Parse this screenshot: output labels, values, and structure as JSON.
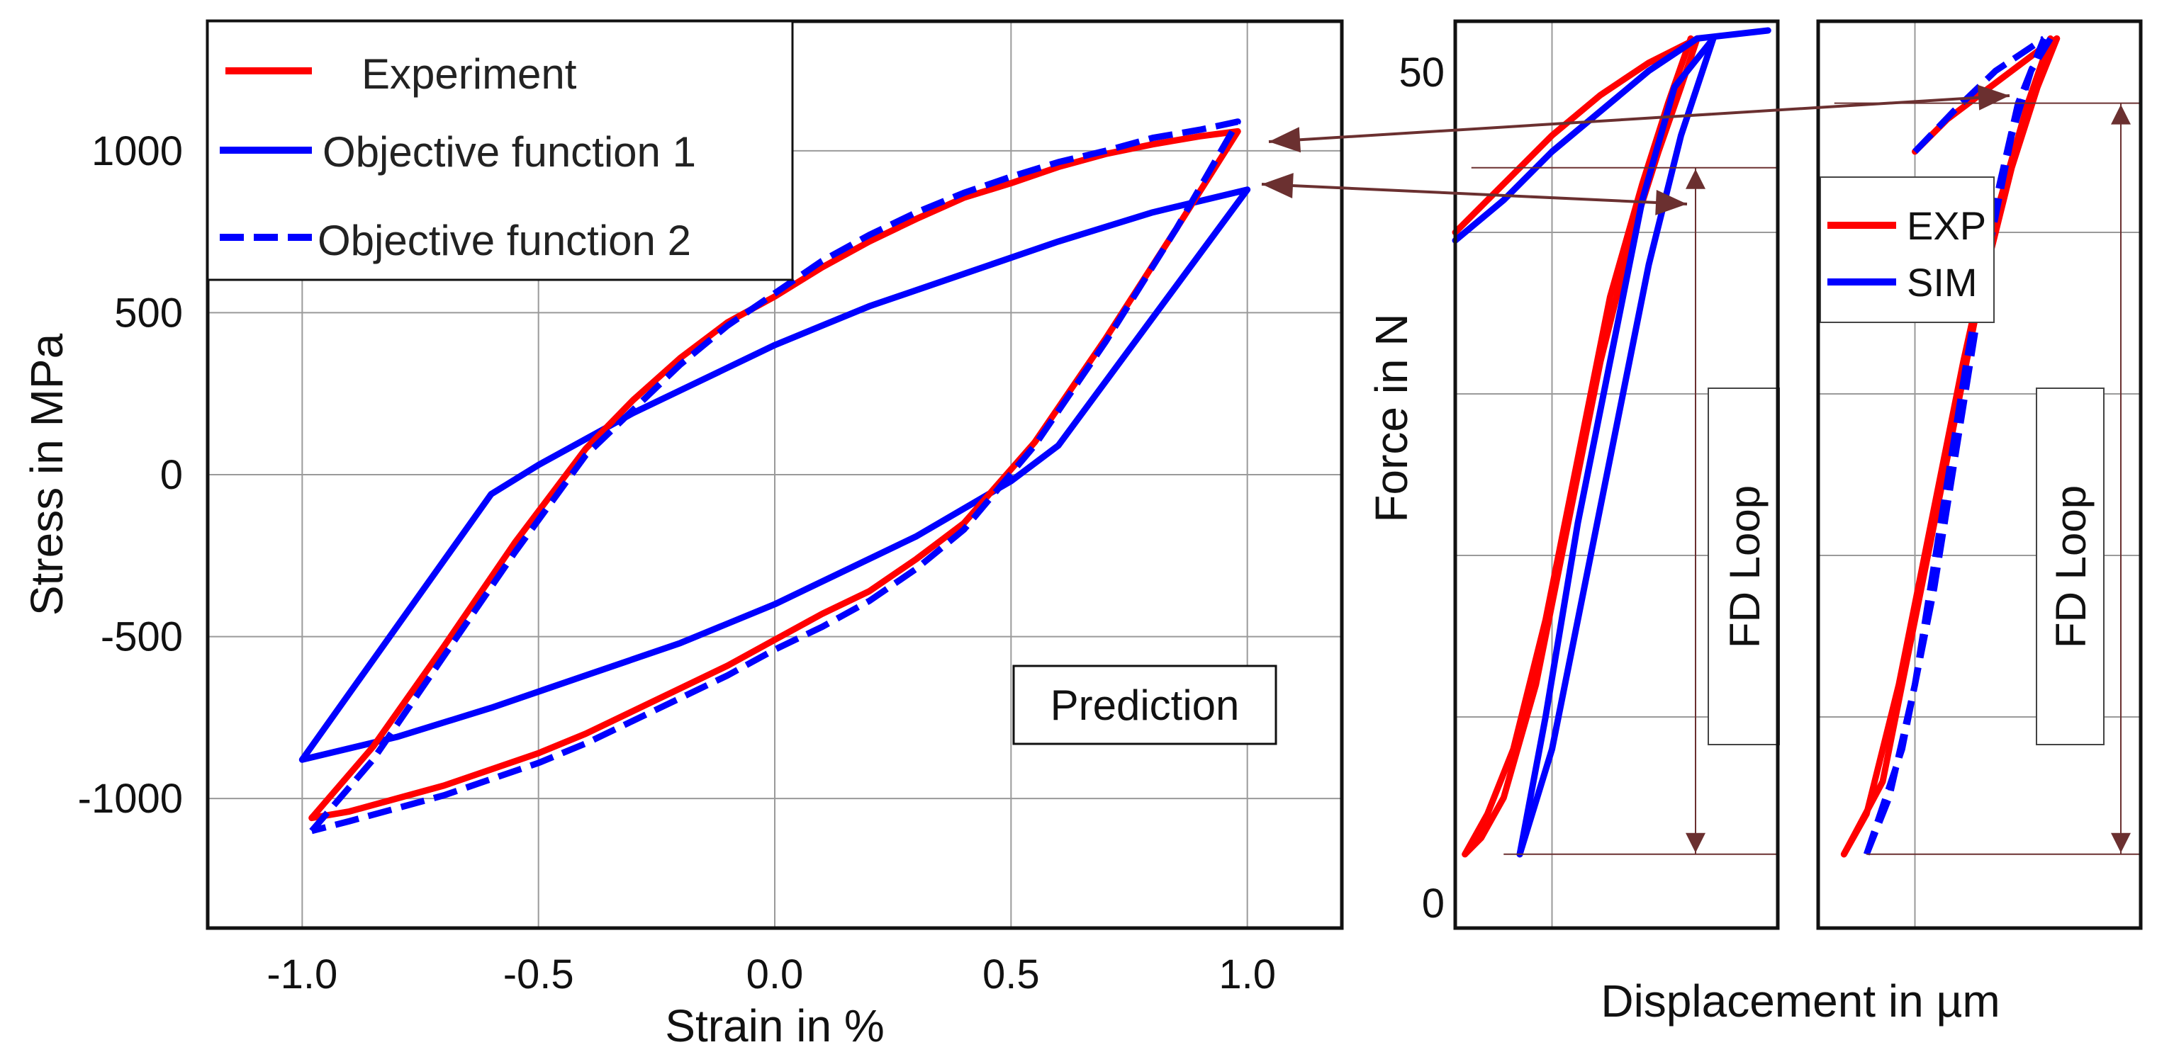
{
  "colors": {
    "experiment": "#ff0000",
    "objective": "#0000ff",
    "arrow": "#6b3030"
  },
  "chart_data": [
    {
      "type": "line",
      "title": "",
      "xlabel": "Strain in %",
      "ylabel": "Stress in MPa",
      "xlim": [
        -1.2,
        1.2
      ],
      "ylim": [
        -1400,
        1400
      ],
      "xticks": [
        -1.0,
        -0.5,
        0.0,
        0.5,
        1.0
      ],
      "xtick_labels": [
        "-1.0",
        "-0.5",
        "0.0",
        "0.5",
        "1.0"
      ],
      "yticks": [
        -1000,
        -500,
        0,
        500,
        1000
      ],
      "ytick_labels": [
        "-1000",
        "-500",
        "0",
        "500",
        "1000"
      ],
      "grid": true,
      "legend_position": "top-left",
      "annotation": "Prediction",
      "series": [
        {
          "name": "Experiment",
          "style": "solid-red",
          "upper": [
            [
              -0.98,
              -1060
            ],
            [
              -0.85,
              -840
            ],
            [
              -0.7,
              -530
            ],
            [
              -0.55,
              -210
            ],
            [
              -0.4,
              80
            ],
            [
              -0.3,
              230
            ],
            [
              -0.2,
              360
            ],
            [
              -0.1,
              470
            ],
            [
              0.0,
              550
            ],
            [
              0.1,
              640
            ],
            [
              0.2,
              720
            ],
            [
              0.3,
              790
            ],
            [
              0.4,
              855
            ],
            [
              0.5,
              900
            ],
            [
              0.6,
              950
            ],
            [
              0.7,
              990
            ],
            [
              0.8,
              1020
            ],
            [
              0.9,
              1045
            ],
            [
              0.98,
              1060
            ]
          ],
          "lower": [
            [
              0.98,
              1060
            ],
            [
              0.85,
              760
            ],
            [
              0.7,
              420
            ],
            [
              0.55,
              100
            ],
            [
              0.4,
              -150
            ],
            [
              0.3,
              -260
            ],
            [
              0.2,
              -360
            ],
            [
              0.1,
              -430
            ],
            [
              0.0,
              -510
            ],
            [
              -0.1,
              -590
            ],
            [
              -0.2,
              -660
            ],
            [
              -0.3,
              -730
            ],
            [
              -0.4,
              -800
            ],
            [
              -0.5,
              -860
            ],
            [
              -0.6,
              -910
            ],
            [
              -0.7,
              -960
            ],
            [
              -0.8,
              -1000
            ],
            [
              -0.9,
              -1040
            ],
            [
              -0.98,
              -1060
            ]
          ]
        },
        {
          "name": "Objective function 1",
          "style": "solid-blue",
          "upper": [
            [
              -1.0,
              -880
            ],
            [
              -0.6,
              -60
            ],
            [
              -0.5,
              30
            ],
            [
              -0.3,
              190
            ],
            [
              -0.2,
              260
            ],
            [
              0.0,
              400
            ],
            [
              0.2,
              520
            ],
            [
              0.4,
              620
            ],
            [
              0.6,
              720
            ],
            [
              0.8,
              810
            ],
            [
              1.0,
              880
            ]
          ],
          "lower": [
            [
              1.0,
              880
            ],
            [
              0.6,
              90
            ],
            [
              0.5,
              -20
            ],
            [
              0.3,
              -190
            ],
            [
              0.2,
              -260
            ],
            [
              0.0,
              -400
            ],
            [
              -0.2,
              -520
            ],
            [
              -0.4,
              -620
            ],
            [
              -0.6,
              -720
            ],
            [
              -0.8,
              -810
            ],
            [
              -1.0,
              -880
            ]
          ]
        },
        {
          "name": "Objective function 2",
          "style": "dashed-blue",
          "upper": [
            [
              -0.98,
              -1100
            ],
            [
              -0.85,
              -880
            ],
            [
              -0.7,
              -560
            ],
            [
              -0.55,
              -240
            ],
            [
              -0.4,
              60
            ],
            [
              -0.3,
              200
            ],
            [
              -0.2,
              340
            ],
            [
              -0.1,
              460
            ],
            [
              0.0,
              560
            ],
            [
              0.1,
              660
            ],
            [
              0.2,
              740
            ],
            [
              0.3,
              810
            ],
            [
              0.4,
              870
            ],
            [
              0.5,
              920
            ],
            [
              0.6,
              965
            ],
            [
              0.7,
              1000
            ],
            [
              0.8,
              1040
            ],
            [
              0.9,
              1065
            ],
            [
              0.98,
              1090
            ]
          ],
          "lower": [
            [
              0.98,
              1090
            ],
            [
              0.85,
              760
            ],
            [
              0.7,
              410
            ],
            [
              0.55,
              90
            ],
            [
              0.4,
              -170
            ],
            [
              0.3,
              -290
            ],
            [
              0.2,
              -390
            ],
            [
              0.1,
              -470
            ],
            [
              0.0,
              -540
            ],
            [
              -0.1,
              -620
            ],
            [
              -0.2,
              -690
            ],
            [
              -0.3,
              -760
            ],
            [
              -0.4,
              -830
            ],
            [
              -0.5,
              -890
            ],
            [
              -0.6,
              -940
            ],
            [
              -0.7,
              -990
            ],
            [
              -0.8,
              -1030
            ],
            [
              -0.9,
              -1070
            ],
            [
              -0.98,
              -1100
            ]
          ]
        }
      ],
      "legend": [
        "Experiment",
        "Objective function 1",
        "Objective function 2"
      ]
    },
    {
      "type": "line",
      "title": "",
      "xlabel": "Displacement in µm",
      "ylabel": "Force in N",
      "ylim": [
        0,
        52
      ],
      "yticks": [
        0,
        50
      ],
      "ytick_labels": [
        "0",
        "50"
      ],
      "xlim": [
        0,
        1
      ],
      "grid": true,
      "annotation": "FD Loop",
      "series": [
        {
          "name": "EXP",
          "style": "solid-red",
          "curve_a": [
            [
              0.03,
              1.5
            ],
            [
              0.08,
              2.5
            ],
            [
              0.15,
              5
            ],
            [
              0.25,
              12
            ],
            [
              0.35,
              22
            ],
            [
              0.45,
              32
            ],
            [
              0.55,
              40
            ],
            [
              0.63,
              45
            ],
            [
              0.7,
              49
            ],
            [
              0.75,
              52
            ]
          ],
          "curve_b": [
            [
              0.03,
              1.5
            ],
            [
              0.1,
              4
            ],
            [
              0.18,
              8
            ],
            [
              0.28,
              16
            ],
            [
              0.38,
              26
            ],
            [
              0.48,
              36
            ],
            [
              0.58,
              43
            ],
            [
              0.66,
              48
            ],
            [
              0.73,
              52
            ]
          ],
          "top": [
            [
              0.0,
              40
            ],
            [
              0.15,
              43
            ],
            [
              0.3,
              46
            ],
            [
              0.45,
              48.5
            ],
            [
              0.6,
              50.5
            ],
            [
              0.7,
              51.5
            ],
            [
              0.75,
              52
            ]
          ]
        },
        {
          "name": "SIM",
          "style": "solid-blue",
          "curve_a": [
            [
              0.2,
              1.5
            ],
            [
              0.3,
              8
            ],
            [
              0.4,
              18
            ],
            [
              0.5,
              28
            ],
            [
              0.6,
              38
            ],
            [
              0.7,
              46
            ],
            [
              0.8,
              52
            ]
          ],
          "curve_b": [
            [
              0.2,
              1.5
            ],
            [
              0.28,
              10
            ],
            [
              0.38,
              22
            ],
            [
              0.48,
              32
            ],
            [
              0.58,
              42
            ],
            [
              0.68,
              49
            ],
            [
              0.8,
              52
            ]
          ],
          "top": [
            [
              0.0,
              39.5
            ],
            [
              0.15,
              42
            ],
            [
              0.3,
              45
            ],
            [
              0.45,
              47.5
            ],
            [
              0.6,
              50
            ],
            [
              0.75,
              52
            ],
            [
              0.97,
              52.5
            ]
          ]
        }
      ]
    },
    {
      "type": "line",
      "title": "",
      "xlabel": "Displacement in µm",
      "ylabel": "",
      "ylim": [
        0,
        52
      ],
      "xlim": [
        0,
        1
      ],
      "grid": true,
      "annotation": "FD Loop",
      "legend": [
        "EXP",
        "SIM"
      ],
      "series": [
        {
          "name": "EXP",
          "style": "solid-red",
          "curve_a": [
            [
              0.08,
              1.5
            ],
            [
              0.15,
              4
            ],
            [
              0.25,
              12
            ],
            [
              0.35,
              22
            ],
            [
              0.45,
              32
            ],
            [
              0.55,
              41
            ],
            [
              0.65,
              48
            ],
            [
              0.72,
              52
            ]
          ],
          "curve_b": [
            [
              0.08,
              1.5
            ],
            [
              0.2,
              6
            ],
            [
              0.3,
              16
            ],
            [
              0.4,
              26
            ],
            [
              0.5,
              36
            ],
            [
              0.6,
              44
            ],
            [
              0.68,
              49
            ],
            [
              0.74,
              52
            ]
          ],
          "top": [
            [
              0.3,
              45
            ],
            [
              0.4,
              47
            ],
            [
              0.5,
              48.5
            ],
            [
              0.6,
              50
            ],
            [
              0.7,
              51.5
            ],
            [
              0.74,
              52
            ]
          ]
        },
        {
          "name": "SIM",
          "style": "dashed-blue",
          "curve_a": [
            [
              0.15,
              1.5
            ],
            [
              0.22,
              5
            ],
            [
              0.3,
              12
            ],
            [
              0.38,
              22
            ],
            [
              0.46,
              32
            ],
            [
              0.54,
              41
            ],
            [
              0.62,
              48
            ],
            [
              0.7,
              52
            ]
          ],
          "curve_b": [
            [
              0.15,
              1.5
            ],
            [
              0.26,
              8
            ],
            [
              0.36,
              18
            ],
            [
              0.44,
              28
            ],
            [
              0.52,
              38
            ],
            [
              0.6,
              46
            ],
            [
              0.66,
              50
            ],
            [
              0.72,
              52
            ]
          ],
          "top": [
            [
              0.3,
              45
            ],
            [
              0.42,
              47.5
            ],
            [
              0.55,
              50
            ],
            [
              0.7,
              52
            ]
          ]
        }
      ]
    }
  ]
}
